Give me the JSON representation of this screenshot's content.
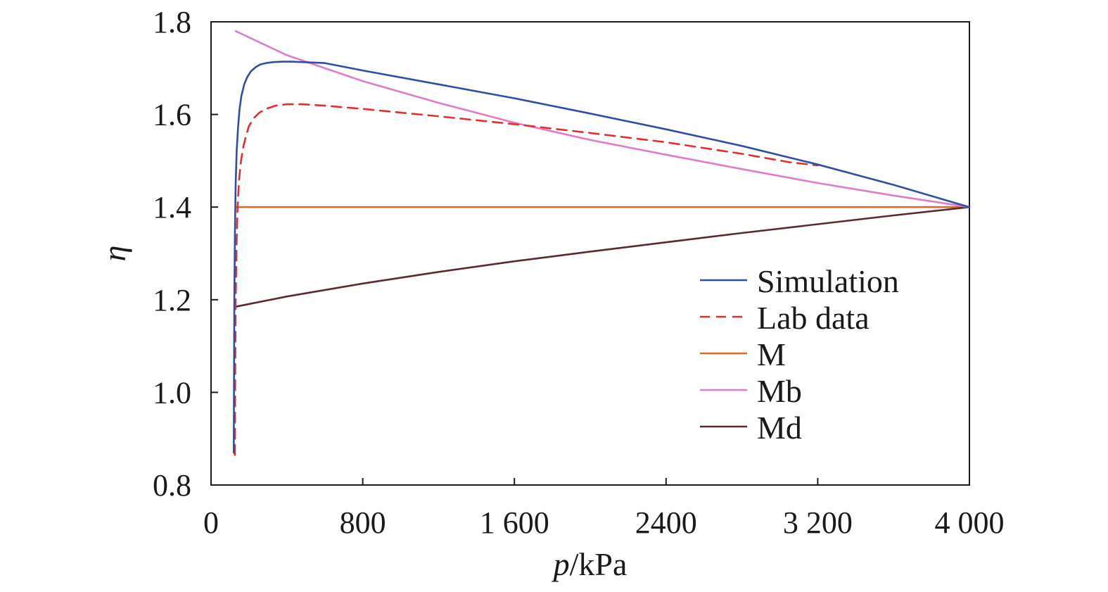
{
  "chart_data": {
    "type": "line",
    "xlabel_italic": "p",
    "xlabel_rest": "/kPa",
    "ylabel": "η",
    "xlim": [
      0,
      4000
    ],
    "ylim": [
      0.8,
      1.8
    ],
    "xticks": [
      0,
      800,
      1600,
      2400,
      3200,
      4000
    ],
    "xtick_labels": [
      "0",
      "800",
      "1 600",
      "2400",
      "3 200",
      "4 000"
    ],
    "yticks": [
      0.8,
      1.0,
      1.2,
      1.4,
      1.6,
      1.8
    ],
    "ytick_labels": [
      "0.8",
      "1.0",
      "1.2",
      "1.4",
      "1.6",
      "1.8"
    ],
    "grid": false,
    "legend_position": "lower-right",
    "series": [
      {
        "name": "Simulation",
        "color": "#2e4fa3",
        "dash": "solid",
        "x": [
          120,
          121,
          123,
          126,
          130,
          135,
          142,
          150,
          160,
          175,
          190,
          210,
          235,
          260,
          290,
          330,
          380,
          420,
          480,
          600,
          800,
          1200,
          1600,
          2000,
          2400,
          2800,
          3200,
          3600,
          4000
        ],
        "y": [
          0.87,
          1.0,
          1.2,
          1.35,
          1.45,
          1.52,
          1.57,
          1.61,
          1.64,
          1.665,
          1.68,
          1.693,
          1.702,
          1.708,
          1.711,
          1.713,
          1.714,
          1.714,
          1.713,
          1.711,
          1.695,
          1.665,
          1.635,
          1.602,
          1.568,
          1.532,
          1.492,
          1.448,
          1.4
        ]
      },
      {
        "name": "Lab data",
        "color": "#e0302e",
        "dash": "dashed",
        "x": [
          125,
          127,
          130,
          135,
          140,
          148,
          158,
          170,
          185,
          200,
          225,
          255,
          290,
          340,
          400,
          480,
          600,
          800,
          1200,
          1600,
          2000,
          2400,
          2800,
          3050,
          3200
        ],
        "y": [
          0.865,
          1.0,
          1.2,
          1.33,
          1.4,
          1.46,
          1.5,
          1.53,
          1.555,
          1.575,
          1.592,
          1.604,
          1.612,
          1.619,
          1.622,
          1.622,
          1.619,
          1.612,
          1.596,
          1.579,
          1.56,
          1.54,
          1.515,
          1.497,
          1.49
        ]
      },
      {
        "name": "M",
        "color": "#dd6a2b",
        "dash": "solid",
        "x": [
          130,
          4000
        ],
        "y": [
          1.4,
          1.4
        ]
      },
      {
        "name": "Mb",
        "color": "#e07cc7",
        "dash": "solid",
        "x": [
          130,
          400,
          800,
          1200,
          1600,
          2000,
          2400,
          2800,
          3200,
          3600,
          4000
        ],
        "y": [
          1.78,
          1.728,
          1.672,
          1.625,
          1.582,
          1.545,
          1.513,
          1.482,
          1.452,
          1.425,
          1.4
        ]
      },
      {
        "name": "Md",
        "color": "#5a2a2e",
        "dash": "solid",
        "x": [
          130,
          400,
          800,
          1200,
          1600,
          2000,
          2400,
          2800,
          3200,
          3600,
          4000
        ],
        "y": [
          1.185,
          1.207,
          1.235,
          1.26,
          1.283,
          1.304,
          1.324,
          1.344,
          1.363,
          1.382,
          1.4
        ]
      }
    ]
  }
}
